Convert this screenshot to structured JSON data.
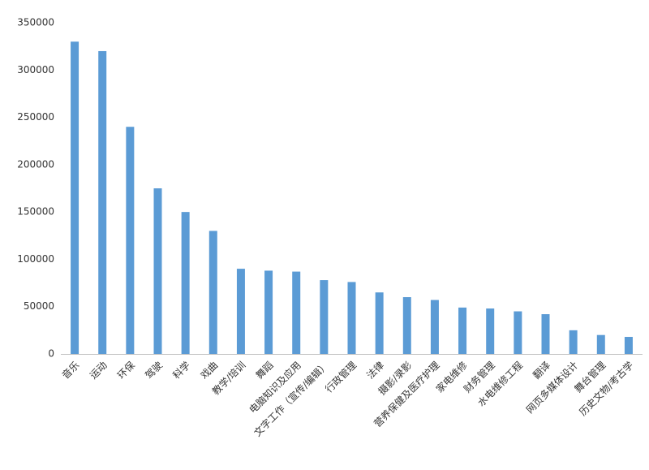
{
  "chart_data": {
    "type": "bar",
    "categories": [
      "音乐",
      "运动",
      "环保",
      "驾驶",
      "科学",
      "戏曲",
      "教学/培训",
      "舞蹈",
      "电脑知识及应用",
      "文字工作（宣传/编辑）",
      "行政管理",
      "法律",
      "摄影/录影",
      "营养保健及医疗护理",
      "家电维修",
      "财务管理",
      "水电维修工程",
      "翻译",
      "网页多媒体设计",
      "舞台管理",
      "历史文物/考古学"
    ],
    "values": [
      330000,
      320000,
      240000,
      175000,
      150000,
      130000,
      90000,
      88000,
      87000,
      78000,
      76000,
      65000,
      60000,
      57000,
      49000,
      48000,
      45000,
      42000,
      25000,
      20000,
      18000
    ],
    "color": "#5b9bd5",
    "ylim": [
      0,
      350000
    ],
    "yticks": [
      0,
      50000,
      100000,
      150000,
      200000,
      250000,
      300000,
      350000
    ],
    "grid": false
  }
}
